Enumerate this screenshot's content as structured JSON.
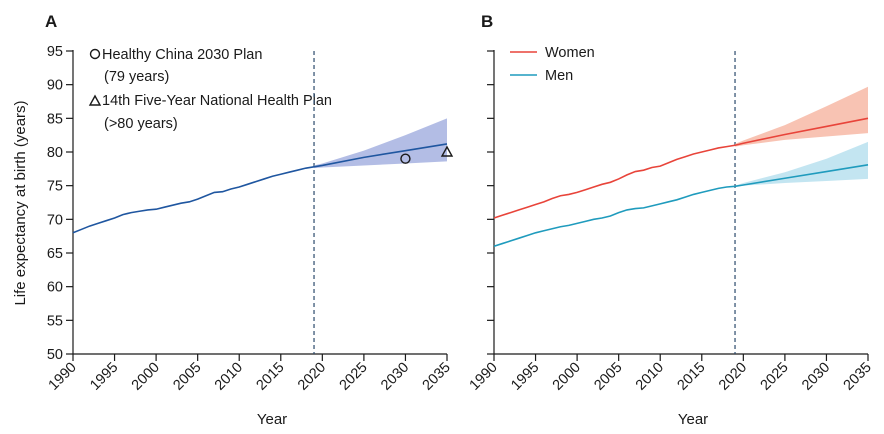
{
  "chart_data": [
    {
      "panel": "A",
      "type": "line",
      "xlabel": "Year",
      "ylabel": "Life expectancy at birth (years)",
      "xlim": [
        1990,
        2035
      ],
      "ylim": [
        50,
        95
      ],
      "xticks": [
        1990,
        1995,
        2000,
        2005,
        2010,
        2015,
        2020,
        2025,
        2030,
        2035
      ],
      "yticks": [
        50,
        55,
        60,
        65,
        70,
        75,
        80,
        85,
        90,
        95
      ],
      "vline_x": 2019,
      "colors": {
        "line": "#1f56a0",
        "band": "#9aa7dc"
      },
      "series": [
        {
          "x": [
            1990,
            1991,
            1992,
            1993,
            1994,
            1995,
            1996,
            1997,
            1998,
            1999,
            2000,
            2001,
            2002,
            2003,
            2004,
            2005,
            2006,
            2007,
            2008,
            2009,
            2010,
            2011,
            2012,
            2013,
            2014,
            2015,
            2016,
            2017,
            2018,
            2019
          ],
          "y": [
            68.0,
            68.5,
            69.0,
            69.4,
            69.8,
            70.2,
            70.7,
            71.0,
            71.2,
            71.4,
            71.5,
            71.8,
            72.1,
            72.4,
            72.6,
            73.0,
            73.5,
            74.0,
            74.1,
            74.5,
            74.8,
            75.2,
            75.6,
            76.0,
            76.4,
            76.7,
            77.0,
            77.3,
            77.6,
            77.8
          ]
        },
        {
          "x": [
            2019,
            2020,
            2025,
            2030,
            2035
          ],
          "y": [
            77.8,
            78.0,
            79.2,
            80.2,
            81.2
          ]
        }
      ],
      "band": {
        "x": [
          2019,
          2020,
          2025,
          2030,
          2035
        ],
        "lower": [
          77.6,
          77.7,
          78.0,
          78.3,
          78.6
        ],
        "upper": [
          78.0,
          78.3,
          80.2,
          82.5,
          85.0
        ]
      },
      "targets": [
        {
          "marker": "circle",
          "x": 2030,
          "y": 79,
          "legend": [
            "Healthy China 2030 Plan",
            "(79 years)"
          ]
        },
        {
          "marker": "triangle",
          "x": 2035,
          "y": 80,
          "legend": [
            "14th Five-Year National Health Plan",
            "(>80 years)"
          ]
        }
      ]
    },
    {
      "panel": "B",
      "type": "line",
      "xlabel": "Year",
      "xlim": [
        1990,
        2035
      ],
      "ylim": [
        50,
        95
      ],
      "xticks": [
        1990,
        1995,
        2000,
        2005,
        2010,
        2015,
        2020,
        2025,
        2030,
        2035
      ],
      "vline_x": 2019,
      "legend_position": "top-left",
      "series": [
        {
          "name": "Women",
          "color": "#e8443a",
          "band_color": "#f7b8a6",
          "x": [
            1990,
            1991,
            1992,
            1993,
            1994,
            1995,
            1996,
            1997,
            1998,
            1999,
            2000,
            2001,
            2002,
            2003,
            2004,
            2005,
            2006,
            2007,
            2008,
            2009,
            2010,
            2011,
            2012,
            2013,
            2014,
            2015,
            2016,
            2017,
            2018,
            2019,
            2020,
            2025,
            2030,
            2035
          ],
          "y": [
            70.2,
            70.6,
            71.0,
            71.4,
            71.8,
            72.2,
            72.6,
            73.1,
            73.5,
            73.7,
            74.0,
            74.4,
            74.8,
            75.2,
            75.5,
            76.0,
            76.6,
            77.1,
            77.3,
            77.7,
            77.9,
            78.4,
            78.9,
            79.3,
            79.7,
            80.0,
            80.3,
            80.6,
            80.8,
            81.0,
            81.3,
            82.6,
            83.8,
            85.0
          ],
          "band": {
            "x": [
              2019,
              2020,
              2025,
              2030,
              2035
            ],
            "lower": [
              80.8,
              81.0,
              81.8,
              82.3,
              82.8
            ],
            "upper": [
              81.2,
              81.7,
              84.0,
              86.8,
              89.7
            ]
          }
        },
        {
          "name": "Men",
          "color": "#1f9bbd",
          "band_color": "#b9e1ef",
          "x": [
            1990,
            1991,
            1992,
            1993,
            1994,
            1995,
            1996,
            1997,
            1998,
            1999,
            2000,
            2001,
            2002,
            2003,
            2004,
            2005,
            2006,
            2007,
            2008,
            2009,
            2010,
            2011,
            2012,
            2013,
            2014,
            2015,
            2016,
            2017,
            2018,
            2019,
            2020,
            2025,
            2030,
            2035
          ],
          "y": [
            66.0,
            66.4,
            66.8,
            67.2,
            67.6,
            68.0,
            68.3,
            68.6,
            68.9,
            69.1,
            69.4,
            69.7,
            70.0,
            70.2,
            70.5,
            71.0,
            71.4,
            71.6,
            71.7,
            72.0,
            72.3,
            72.6,
            72.9,
            73.3,
            73.7,
            74.0,
            74.3,
            74.6,
            74.8,
            74.9,
            75.1,
            76.1,
            77.1,
            78.1
          ],
          "band": {
            "x": [
              2019,
              2020,
              2025,
              2030,
              2035
            ],
            "lower": [
              74.8,
              75.0,
              75.4,
              75.7,
              76.0
            ],
            "upper": [
              75.0,
              75.4,
              77.0,
              79.0,
              81.5
            ]
          }
        }
      ]
    }
  ]
}
